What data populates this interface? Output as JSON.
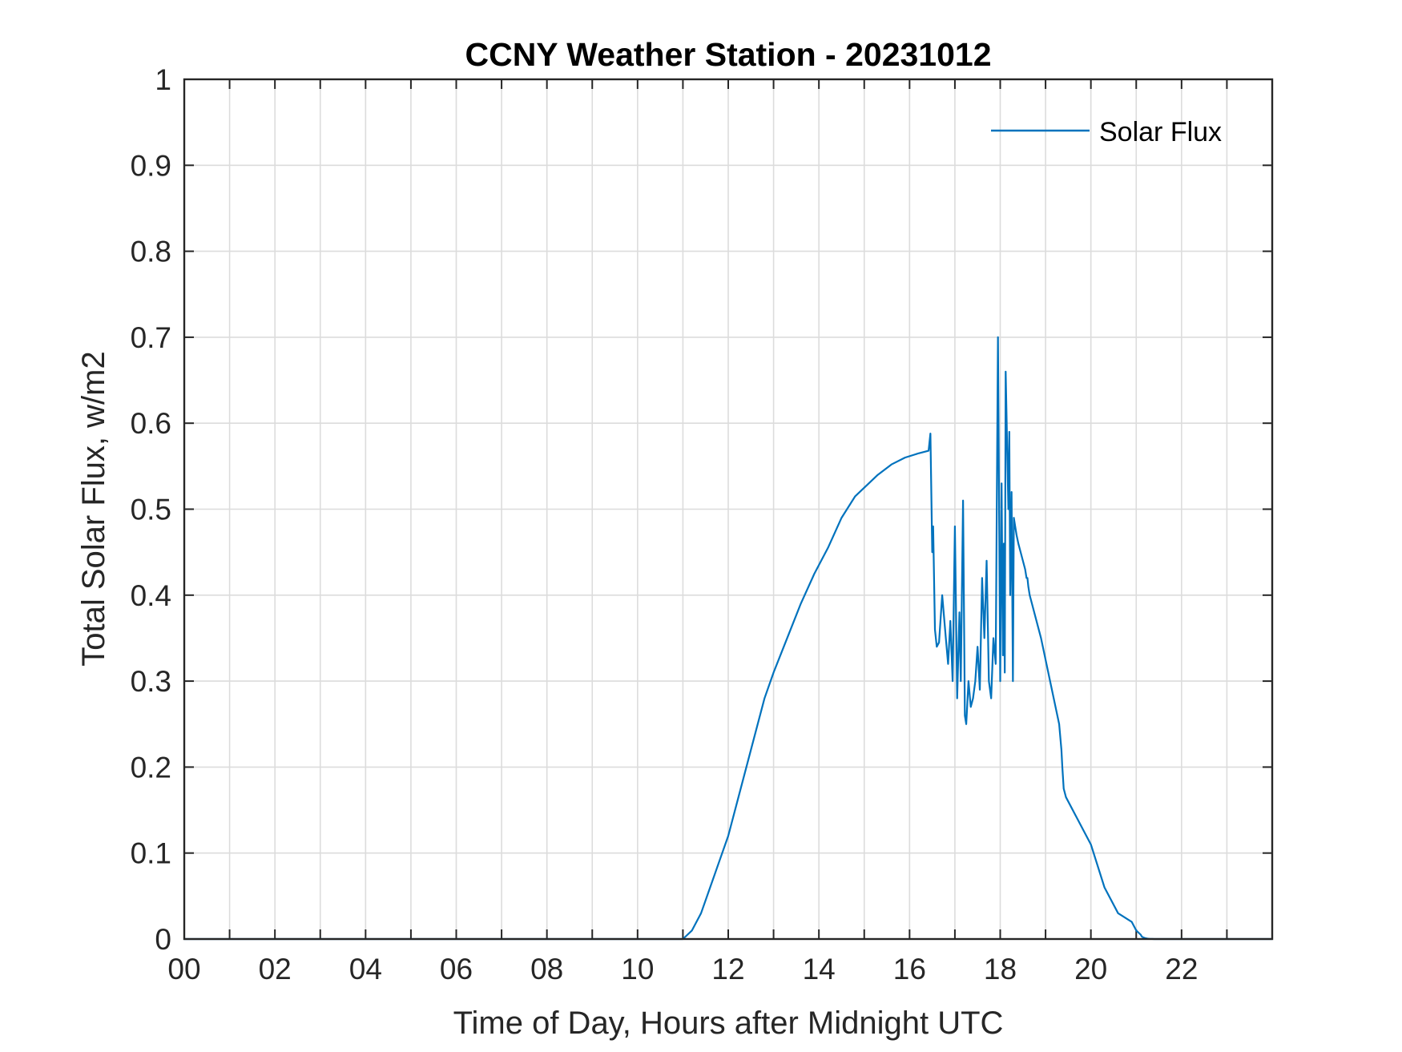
{
  "chart_data": {
    "type": "line",
    "title": "CCNY Weather Station - 20231012",
    "xlabel": "Time of Day, Hours after Midnight UTC",
    "ylabel": "Total Solar Flux, w/m2",
    "xlim": [
      0,
      24
    ],
    "ylim": [
      0,
      1
    ],
    "grid": true,
    "legend_position": "top-right",
    "x_ticks": [
      0,
      2,
      4,
      6,
      8,
      10,
      12,
      14,
      16,
      18,
      20,
      22
    ],
    "x_tick_labels": [
      "00",
      "02",
      "04",
      "06",
      "08",
      "10",
      "12",
      "14",
      "16",
      "18",
      "20",
      "22"
    ],
    "x_minor_grid_step": 1,
    "y_ticks": [
      0,
      0.1,
      0.2,
      0.3,
      0.4,
      0.5,
      0.6,
      0.7,
      0.8,
      0.9,
      1
    ],
    "y_tick_labels": [
      "0",
      "0.1",
      "0.2",
      "0.3",
      "0.4",
      "0.5",
      "0.6",
      "0.7",
      "0.8",
      "0.9",
      "1"
    ],
    "line_color": "#0072BD",
    "series": [
      {
        "name": "Solar Flux",
        "x": [
          0,
          11.0,
          11.2,
          11.4,
          11.6,
          11.8,
          12.0,
          12.2,
          12.5,
          12.8,
          13.0,
          13.3,
          13.6,
          13.9,
          14.2,
          14.5,
          14.8,
          15.0,
          15.3,
          15.6,
          15.9,
          16.2,
          16.42,
          16.46,
          16.5,
          16.52,
          16.56,
          16.6,
          16.65,
          16.72,
          16.8,
          16.85,
          16.9,
          16.95,
          17.0,
          17.05,
          17.1,
          17.13,
          17.18,
          17.22,
          17.25,
          17.3,
          17.35,
          17.4,
          17.45,
          17.5,
          17.55,
          17.6,
          17.65,
          17.7,
          17.75,
          17.8,
          17.85,
          17.9,
          17.95,
          18.0,
          18.03,
          18.06,
          18.08,
          18.1,
          18.12,
          18.15,
          18.18,
          18.2,
          18.22,
          18.25,
          18.28,
          18.3,
          18.33,
          18.36,
          18.4,
          18.45,
          18.5,
          18.55,
          18.58,
          18.6,
          18.62,
          18.65,
          18.7,
          18.9,
          19.1,
          19.3,
          19.35,
          19.37,
          19.4,
          19.45,
          19.5,
          19.7,
          20.0,
          20.3,
          20.6,
          20.9,
          21.0,
          21.1,
          21.12,
          21.15,
          21.2,
          21.25,
          21.3,
          21.35,
          21.4,
          21.5,
          21.55,
          21.6,
          21.65,
          21.7,
          21.75,
          21.8,
          21.9,
          22.0,
          22.3,
          22.6,
          22.8,
          23.0,
          24.0
        ],
        "y": [
          0.0,
          0.0,
          0.01,
          0.03,
          0.06,
          0.09,
          0.12,
          0.16,
          0.22,
          0.28,
          0.31,
          0.35,
          0.39,
          0.425,
          0.455,
          0.49,
          0.515,
          0.525,
          0.54,
          0.552,
          0.56,
          0.565,
          0.568,
          0.588,
          0.45,
          0.48,
          0.36,
          0.34,
          0.345,
          0.4,
          0.35,
          0.32,
          0.37,
          0.3,
          0.48,
          0.28,
          0.38,
          0.3,
          0.51,
          0.26,
          0.25,
          0.3,
          0.27,
          0.28,
          0.3,
          0.34,
          0.29,
          0.42,
          0.35,
          0.44,
          0.3,
          0.28,
          0.35,
          0.32,
          0.7,
          0.3,
          0.53,
          0.33,
          0.46,
          0.31,
          0.66,
          0.58,
          0.5,
          0.59,
          0.4,
          0.52,
          0.3,
          0.49,
          0.48,
          0.47,
          0.46,
          0.45,
          0.44,
          0.43,
          0.42,
          0.42,
          0.41,
          0.4,
          0.39,
          0.35,
          0.3,
          0.25,
          0.22,
          0.2,
          0.175,
          0.165,
          0.16,
          0.14,
          0.11,
          0.06,
          0.03,
          0.02,
          0.01,
          0.005,
          0.003,
          0.002,
          0.001,
          0.0005,
          0.0002,
          0.0001,
          0.0,
          0.0,
          0.0,
          0.0,
          0.0,
          0.0,
          0.0,
          0.0,
          0.0,
          0.0,
          0.0,
          0.0,
          0.0,
          0.0,
          0.0
        ]
      }
    ]
  }
}
